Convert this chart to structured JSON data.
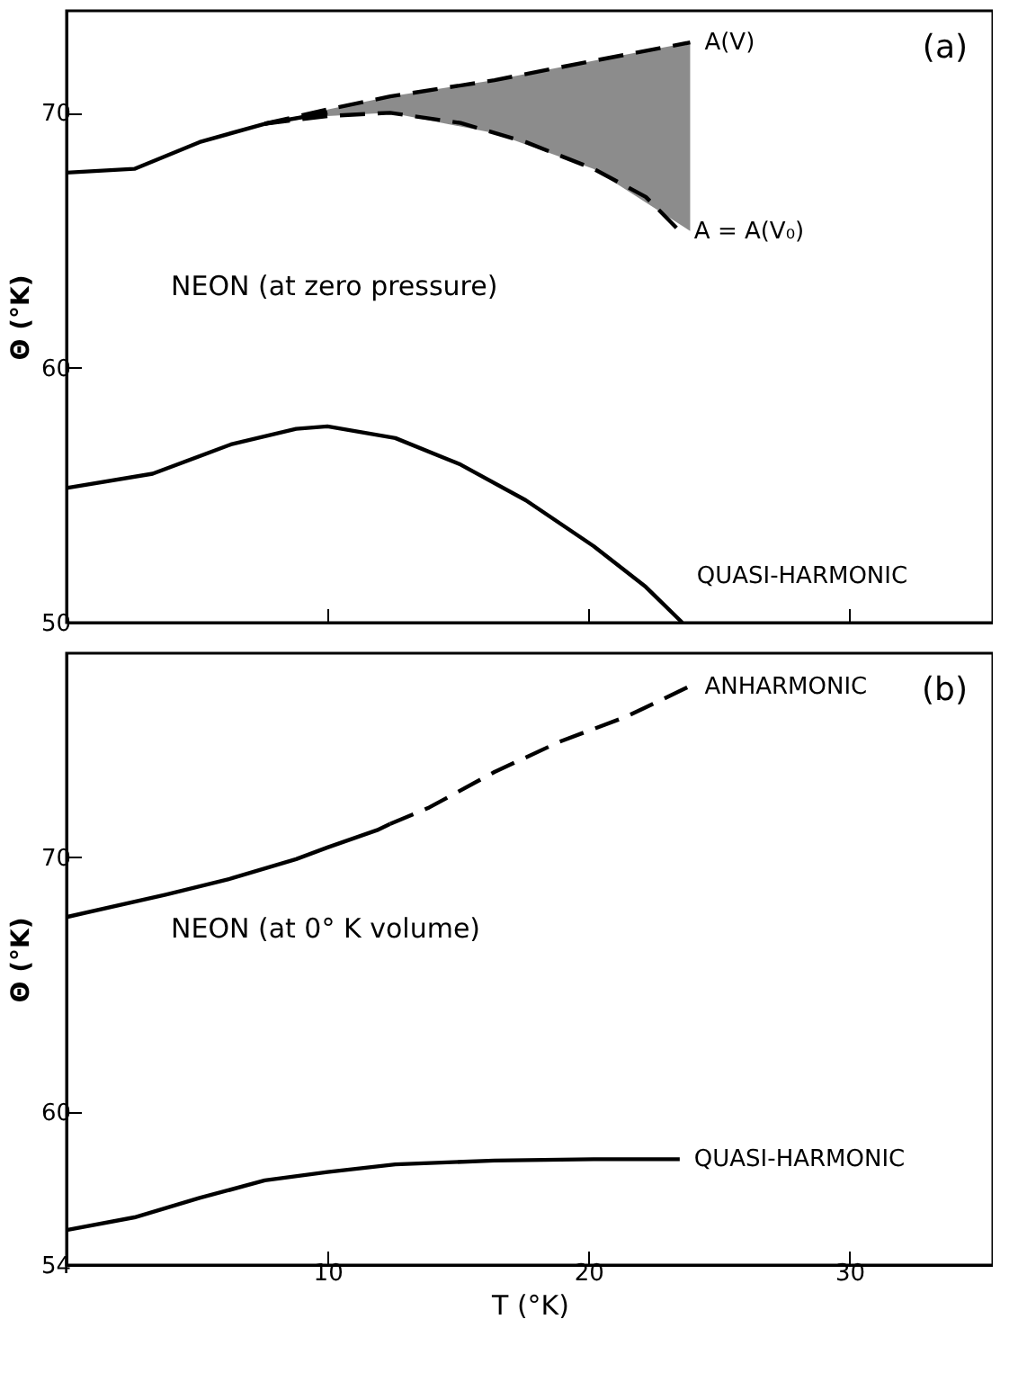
{
  "chart_data": [
    {
      "type": "line",
      "ylabel": "Θ (°K)",
      "xlim": [
        0,
        35.5
      ],
      "xticks": [
        10,
        20,
        30
      ],
      "ylim": [
        50,
        74
      ],
      "yticks": [
        50,
        60,
        70
      ],
      "tick_labels": "y",
      "grid": false,
      "annotations": [
        "(a)",
        "NEON  (at zero pressure)"
      ],
      "series": [
        {
          "color": "#000000",
          "line_style": "solid",
          "x": [
            0,
            2.6,
            5.1,
            7.6,
            10
          ],
          "values": [
            67.65,
            67.8,
            68.85,
            69.57,
            70.0
          ]
        },
        {
          "name": "A(V)",
          "color": "#000000",
          "line_style": "dashed",
          "x": [
            7.6,
            10,
            12.4,
            16.4,
            20.2,
            23.9
          ],
          "values": [
            69.57,
            70.13,
            70.64,
            71.28,
            72.04,
            72.76
          ],
          "lower": [
            69.57,
            69.87,
            70.0,
            69.2,
            67.8,
            65.36
          ],
          "upper": [
            69.57,
            70.13,
            70.64,
            71.28,
            72.04,
            72.76
          ]
        },
        {
          "name": "A = A(V₀)",
          "color": "#000000",
          "line_style": "dashed",
          "x": [
            7.6,
            10,
            12.4,
            15.1,
            17.6,
            20.2,
            22.2,
            23.5
          ],
          "values": [
            69.57,
            69.87,
            70.0,
            69.6,
            68.85,
            67.8,
            66.7,
            65.36
          ]
        },
        {
          "name": "QUASI-HARMONIC",
          "color": "#000000",
          "line_style": "solid",
          "x": [
            0,
            3.3,
            6.3,
            8.8,
            10,
            12.6,
            15.1,
            17.6,
            20.2,
            22.2,
            23.6
          ],
          "values": [
            55.28,
            55.84,
            56.99,
            57.6,
            57.7,
            57.24,
            56.2,
            54.8,
            53.0,
            51.4,
            50.0
          ]
        }
      ]
    },
    {
      "type": "line",
      "xlabel": "T (°K)",
      "ylabel": "Θ (°K)",
      "xlim": [
        0,
        35.5
      ],
      "xticks": [
        10,
        20,
        30
      ],
      "ylim": [
        54,
        78
      ],
      "yticks": [
        54,
        60,
        70
      ],
      "grid": false,
      "annotations": [
        "(b)",
        "NEON  (at 0° K  volume)"
      ],
      "series": [
        {
          "color": "#000000",
          "line_style": "solid",
          "x": [
            0,
            3.8,
            6.3,
            8.8,
            10,
            11.9,
            12.4
          ],
          "values": [
            67.65,
            68.53,
            69.16,
            69.92,
            70.38,
            71.06,
            71.3
          ]
        },
        {
          "name": "ANHARMONIC",
          "color": "#000000",
          "line_style": "dashed",
          "x": [
            12.4,
            13.9,
            16.4,
            18.9,
            21.4,
            23.9
          ],
          "values": [
            71.3,
            71.95,
            73.34,
            74.53,
            75.49,
            76.71
          ]
        },
        {
          "name": "QUASI-HARMONIC",
          "color": "#000000",
          "line_style": "solid",
          "x": [
            0,
            2.6,
            5.1,
            7.6,
            10,
            12.6,
            16.4,
            20.2,
            23.5
          ],
          "values": [
            55.37,
            55.87,
            56.63,
            57.32,
            57.65,
            57.95,
            58.1,
            58.15,
            58.15
          ]
        }
      ]
    }
  ]
}
